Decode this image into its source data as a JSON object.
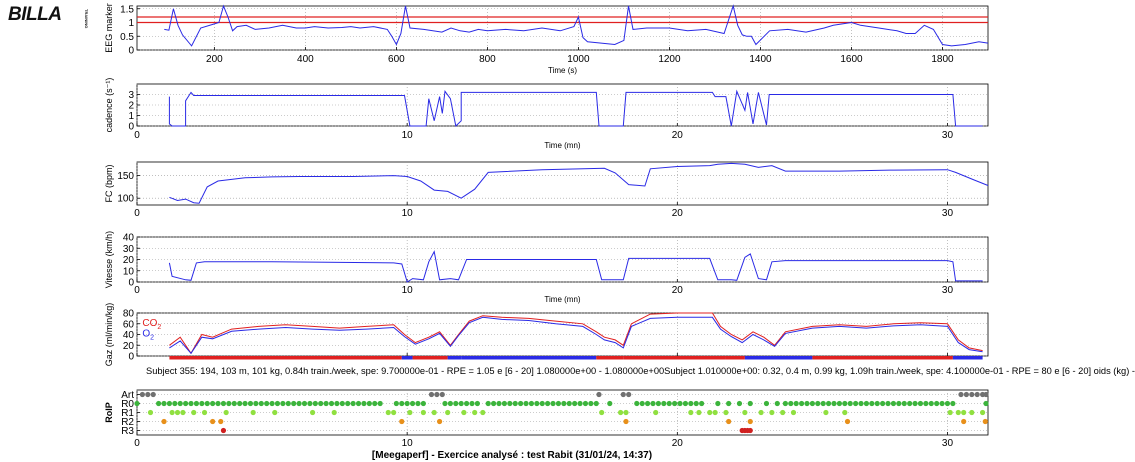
{
  "logo": {
    "text": "BILLA",
    "sub": "TRAINING"
  },
  "chart_data": [
    {
      "type": "line",
      "ylabel": "EEG marker",
      "xlabel": "Time (s)",
      "xlim": [
        30,
        1900
      ],
      "ylim": [
        0,
        1.6
      ],
      "xticks": [
        200,
        400,
        600,
        800,
        1000,
        1200,
        1400,
        1600,
        1800
      ],
      "yticks": [
        0,
        0.5,
        1,
        1.5
      ],
      "ytick_labels": [
        "0",
        "0.5",
        "1",
        "1.5"
      ],
      "hlines": [
        {
          "y": 1.0,
          "color": "#e02020"
        },
        {
          "y": 1.2,
          "color": "#e02020"
        }
      ],
      "grid": true,
      "series": [
        {
          "color": "#2a2ae6",
          "x": [
            90,
            100,
            110,
            120,
            130,
            150,
            170,
            200,
            210,
            220,
            230,
            240,
            250,
            270,
            290,
            320,
            350,
            380,
            400,
            420,
            450,
            480,
            500,
            520,
            550,
            580,
            590,
            600,
            610,
            620,
            630,
            660,
            700,
            720,
            740,
            760,
            780,
            800,
            840,
            880,
            920,
            960,
            990,
            1000,
            1010,
            1020,
            1050,
            1080,
            1100,
            1110,
            1120,
            1150,
            1200,
            1240,
            1280,
            1320,
            1340,
            1350,
            1360,
            1370,
            1380,
            1390,
            1420,
            1460,
            1500,
            1540,
            1560,
            1580,
            1600,
            1620,
            1660,
            1700,
            1720,
            1740,
            1760,
            1780,
            1800,
            1820,
            1850,
            1880,
            1900
          ],
          "y": [
            0.75,
            0.72,
            1.5,
            0.9,
            0.55,
            0.15,
            0.8,
            0.95,
            1.0,
            1.6,
            1.2,
            0.7,
            0.85,
            0.9,
            0.75,
            0.8,
            0.9,
            0.8,
            0.8,
            0.85,
            0.8,
            0.82,
            0.85,
            0.8,
            0.85,
            0.75,
            0.5,
            0.2,
            0.6,
            1.6,
            0.8,
            0.75,
            0.65,
            0.8,
            0.7,
            0.65,
            0.75,
            0.7,
            0.75,
            0.7,
            0.8,
            0.7,
            0.85,
            1.2,
            0.45,
            0.3,
            0.25,
            0.2,
            0.35,
            1.6,
            0.75,
            0.8,
            0.8,
            0.7,
            0.75,
            0.6,
            1.6,
            0.9,
            0.55,
            0.5,
            0.5,
            0.2,
            0.7,
            0.75,
            0.65,
            0.8,
            0.9,
            0.95,
            1.0,
            0.9,
            0.8,
            0.7,
            0.6,
            0.6,
            0.9,
            0.75,
            0.2,
            0.15,
            0.2,
            0.3,
            0.25
          ]
        }
      ]
    },
    {
      "type": "line",
      "ylabel": "cadence (s⁻¹)",
      "xlabel": "Time (mn)",
      "xlim": [
        0,
        31.5
      ],
      "ylim": [
        0,
        4
      ],
      "xticks": [
        0,
        10,
        20,
        30
      ],
      "yticks": [
        0,
        1,
        2,
        3
      ],
      "ytick_labels": [
        "0",
        "1",
        "2",
        "3"
      ],
      "grid": true,
      "series": [
        {
          "color": "#2a2ae6",
          "x": [
            1.2,
            1.2,
            1.3,
            1.8,
            1.8,
            2.0,
            2.1,
            9.9,
            10.1,
            10.2,
            10.7,
            10.8,
            11.0,
            11.2,
            11.3,
            11.4,
            11.6,
            11.8,
            12.0,
            12.0,
            12.1,
            17.0,
            17.1,
            17.2,
            18.0,
            18.1,
            18.2,
            21.3,
            21.4,
            21.8,
            22.0,
            22.2,
            22.5,
            22.6,
            22.8,
            23.0,
            23.3,
            23.4,
            30.2,
            30.3,
            31.3
          ],
          "y": [
            2.8,
            0.2,
            0,
            0,
            2.4,
            3.2,
            2.9,
            2.9,
            0,
            0,
            0,
            2.6,
            0.5,
            2.8,
            1.2,
            3.3,
            2.6,
            0,
            0.5,
            3.2,
            3.2,
            3.2,
            0,
            0,
            0,
            3.2,
            3.2,
            3.2,
            2.8,
            2.8,
            0,
            3.3,
            1.5,
            3.2,
            0.2,
            3.2,
            0.1,
            3.0,
            3.0,
            0,
            0
          ]
        }
      ]
    },
    {
      "type": "line",
      "ylabel": "FC (bpm)",
      "xlabel": "",
      "xlim": [
        0,
        31.5
      ],
      "ylim": [
        85,
        180
      ],
      "xticks": [
        0,
        10,
        20,
        30
      ],
      "yticks": [
        100,
        150
      ],
      "ytick_labels": [
        "100",
        "150"
      ],
      "grid": true,
      "series": [
        {
          "color": "#2a2ae6",
          "x": [
            1.2,
            1.5,
            1.8,
            2.1,
            2.3,
            2.6,
            3.0,
            4,
            5,
            6,
            8,
            9.5,
            10.0,
            10.5,
            11.0,
            11.5,
            12.0,
            12.5,
            13,
            15,
            17.3,
            17.7,
            18.2,
            18.8,
            19,
            20,
            21.2,
            21.5,
            22,
            22.5,
            23.0,
            23.5,
            24,
            26,
            28,
            30,
            30.3,
            31.0,
            31.5
          ],
          "y": [
            102,
            95,
            98,
            90,
            89,
            125,
            138,
            145,
            147,
            148,
            148,
            150,
            148,
            138,
            118,
            115,
            100,
            120,
            157,
            163,
            166,
            156,
            130,
            127,
            165,
            170,
            172,
            175,
            177,
            175,
            168,
            172,
            160,
            160,
            162,
            163,
            157,
            140,
            128
          ]
        }
      ]
    },
    {
      "type": "line",
      "ylabel": "Vitesse (km/h)",
      "xlabel": "Time (mn)",
      "xlim": [
        0,
        31.5
      ],
      "ylim": [
        0,
        40
      ],
      "xticks": [
        0,
        10,
        20,
        30
      ],
      "yticks": [
        0,
        10,
        20,
        30,
        40
      ],
      "ytick_labels": [
        "0",
        "10",
        "20",
        "30",
        "40"
      ],
      "grid": true,
      "series": [
        {
          "color": "#2a2ae6",
          "x": [
            1.2,
            1.3,
            1.8,
            2.0,
            2.2,
            2.5,
            5,
            9.5,
            9.8,
            10.0,
            10.2,
            10.6,
            10.8,
            11.0,
            11.2,
            11.6,
            11.9,
            12.2,
            13,
            17.0,
            17.2,
            18.0,
            18.2,
            21.2,
            21.5,
            22,
            22.2,
            22.5,
            22.7,
            23.0,
            23.3,
            23.5,
            24,
            30,
            30.2,
            30.3,
            31.3
          ],
          "y": [
            17,
            5,
            2,
            1.5,
            17,
            18,
            18,
            17,
            16,
            0,
            3,
            2,
            18,
            27,
            2,
            3,
            2,
            20,
            20,
            20,
            2,
            2,
            21,
            21,
            2,
            2,
            1.5,
            22,
            25,
            3,
            2,
            18,
            19,
            19,
            18,
            1,
            1
          ]
        }
      ]
    },
    {
      "type": "line",
      "ylabel": "Gaz (ml/min/kg)",
      "xlabel": "",
      "xlim": [
        0,
        31.5
      ],
      "ylim": [
        0,
        80
      ],
      "xticks": [
        0,
        10,
        20,
        30
      ],
      "yticks": [
        0,
        20,
        40,
        60,
        80
      ],
      "ytick_labels": [
        "0",
        "20",
        "40",
        "60",
        "80"
      ],
      "grid": true,
      "annotations": [
        {
          "text": "CO",
          "sub": "2",
          "color": "#e02020",
          "x": 0.2,
          "y": 56
        },
        {
          "text": "O",
          "sub": "2",
          "color": "#2a2ae6",
          "x": 0.2,
          "y": 36
        }
      ],
      "band": {
        "colors": [
          "#2a2ae6",
          "#e02020"
        ],
        "segments": [
          [
            1.2,
            2.5,
            1
          ],
          [
            2.5,
            9.8,
            1
          ],
          [
            9.8,
            10.2,
            0
          ],
          [
            10.2,
            11.5,
            1
          ],
          [
            11.5,
            12.0,
            0
          ],
          [
            12.0,
            17.0,
            0
          ],
          [
            17.0,
            18.0,
            1
          ],
          [
            18.0,
            21.8,
            1
          ],
          [
            21.8,
            22.5,
            1
          ],
          [
            22.5,
            25.0,
            0
          ],
          [
            25.0,
            30.2,
            1
          ],
          [
            30.2,
            31.3,
            0
          ]
        ]
      },
      "series": [
        {
          "name": "CO2",
          "color": "#e02020",
          "x": [
            1.2,
            1.6,
            2.0,
            2.4,
            2.8,
            3.5,
            4.5,
            5.5,
            6.5,
            7.5,
            8.5,
            9.5,
            9.9,
            10.3,
            10.8,
            11.2,
            11.6,
            11.9,
            12.3,
            12.8,
            13.5,
            14.5,
            15.5,
            16.5,
            17.0,
            17.3,
            17.7,
            18.0,
            18.3,
            19,
            20,
            21.3,
            21.6,
            22.0,
            22.4,
            22.8,
            23.2,
            23.6,
            24,
            25,
            26,
            27,
            28,
            29,
            30,
            30.4,
            30.8,
            31.3
          ],
          "y": [
            20,
            35,
            5,
            40,
            35,
            50,
            55,
            58,
            55,
            52,
            55,
            58,
            40,
            25,
            35,
            45,
            20,
            40,
            65,
            75,
            72,
            70,
            65,
            60,
            45,
            35,
            30,
            20,
            60,
            78,
            80,
            80,
            55,
            40,
            30,
            45,
            35,
            20,
            45,
            55,
            58,
            55,
            60,
            62,
            60,
            30,
            15,
            10
          ]
        },
        {
          "name": "O2",
          "color": "#2a2ae6",
          "x": [
            1.2,
            1.6,
            2.0,
            2.4,
            2.8,
            3.5,
            4.5,
            5.5,
            6.5,
            7.5,
            8.5,
            9.5,
            9.9,
            10.3,
            10.8,
            11.2,
            11.6,
            11.9,
            12.3,
            12.8,
            13.5,
            14.5,
            15.5,
            16.5,
            17.0,
            17.3,
            17.7,
            18.0,
            18.3,
            19,
            20,
            21.3,
            21.6,
            22.0,
            22.4,
            22.8,
            23.2,
            23.6,
            24,
            25,
            26,
            27,
            28,
            29,
            30,
            30.4,
            30.8,
            31.3
          ],
          "y": [
            15,
            28,
            5,
            35,
            32,
            46,
            50,
            53,
            50,
            48,
            50,
            53,
            36,
            22,
            32,
            42,
            18,
            38,
            62,
            72,
            68,
            66,
            60,
            55,
            40,
            30,
            25,
            15,
            55,
            70,
            72,
            72,
            50,
            36,
            25,
            40,
            30,
            18,
            42,
            52,
            55,
            52,
            56,
            58,
            55,
            25,
            12,
            8
          ]
        }
      ]
    },
    {
      "type": "scatter",
      "ylabel": "RoIP",
      "xlabel": "",
      "xlim": [
        0,
        31.5
      ],
      "ylim": [
        -0.5,
        4.5
      ],
      "xticks": [
        0,
        10,
        20,
        30
      ],
      "yticks": [
        0,
        1,
        2,
        3,
        4
      ],
      "ytick_labels": [
        "R3",
        "R2",
        "R1",
        "R0",
        "Art"
      ],
      "grid": true,
      "series": [
        {
          "name": "Art",
          "color": "#707070",
          "y": 4,
          "x": [
            0.2,
            0.4,
            0.6,
            10.9,
            11.1,
            11.3,
            17.1,
            18.0,
            18.2,
            30.5,
            30.7,
            30.9,
            31.1,
            31.3,
            31.5
          ]
        },
        {
          "name": "R0",
          "color": "#3cb43c",
          "y": 3,
          "x": [
            0.0,
            0.8,
            1.0,
            1.2,
            1.4,
            1.6,
            1.8,
            2.0,
            2.2,
            2.4,
            2.6,
            2.8,
            3.0,
            3.2,
            3.4,
            3.6,
            3.8,
            4.0,
            4.2,
            4.4,
            4.6,
            4.8,
            5.0,
            5.2,
            5.4,
            5.6,
            5.8,
            6.0,
            6.2,
            6.4,
            6.6,
            6.8,
            7.0,
            7.2,
            7.4,
            7.6,
            7.8,
            8.0,
            8.2,
            8.4,
            8.6,
            8.8,
            9.0,
            9.6,
            9.8,
            10.0,
            10.2,
            10.4,
            10.6,
            11.4,
            11.6,
            11.8,
            12.0,
            12.2,
            12.4,
            12.6,
            13.0,
            13.2,
            13.4,
            13.6,
            13.8,
            14.0,
            14.2,
            14.4,
            14.6,
            14.8,
            15.0,
            15.2,
            15.4,
            15.6,
            15.8,
            16.0,
            16.2,
            16.4,
            16.6,
            16.8,
            17.0,
            17.5,
            18.5,
            18.7,
            18.9,
            19.1,
            19.3,
            19.5,
            19.7,
            19.9,
            20.1,
            20.3,
            20.5,
            20.7,
            20.9,
            21.5,
            21.9,
            22.3,
            22.7,
            23.3,
            23.7,
            24.0,
            24.2,
            24.4,
            24.6,
            24.8,
            25.0,
            25.2,
            25.4,
            25.6,
            25.8,
            26.0,
            26.2,
            26.4,
            26.6,
            26.8,
            27.0,
            27.2,
            27.4,
            27.6,
            27.8,
            28.0,
            28.2,
            28.4,
            28.6,
            28.8,
            29.0,
            29.2,
            29.4,
            29.6,
            29.8,
            30.0,
            30.2,
            31.5
          ]
        },
        {
          "name": "R1",
          "color": "#90e040",
          "y": 2,
          "x": [
            0.5,
            1.3,
            1.5,
            1.7,
            2.1,
            2.5,
            3.3,
            4.3,
            5.1,
            6.5,
            7.3,
            9.3,
            9.5,
            10.1,
            10.6,
            11.0,
            11.5,
            12.1,
            12.5,
            12.8,
            17.2,
            17.9,
            18.1,
            19.2,
            20.5,
            20.8,
            21.2,
            21.4,
            21.8,
            22.5,
            23.1,
            23.5,
            23.9,
            24.3,
            25.5,
            26.2,
            30.1,
            30.4,
            30.6,
            30.9,
            31.3
          ]
        },
        {
          "name": "R2",
          "color": "#e8901a",
          "y": 1,
          "x": [
            1.0,
            2.8,
            3.1,
            9.8,
            11.2,
            18.1,
            21.9,
            22.7,
            26.3,
            30.6,
            31.4
          ]
        },
        {
          "name": "R3",
          "color": "#d02020",
          "y": 0,
          "x": [
            3.2,
            22.4,
            22.5,
            22.6,
            22.7
          ]
        }
      ]
    }
  ],
  "subject_line": "Subject 355: 194, 103 m, 101 kg, 0.84h train./week, spe: 9.700000e-01 - RPE = 1.05 e [6 - 20] 1.080000e+00 - 1.080000e+00Subject 1.010000e+00: 0.32, 0.4 m, 0.99 kg, 1.09h train./week, spe: 4.100000e-01 - RPE = 80 e [6 - 20] oids (kg) -",
  "footer_title": "[Meegaperf] - Exercice analysé : test Rabit  (31/01/24, 14:37)"
}
